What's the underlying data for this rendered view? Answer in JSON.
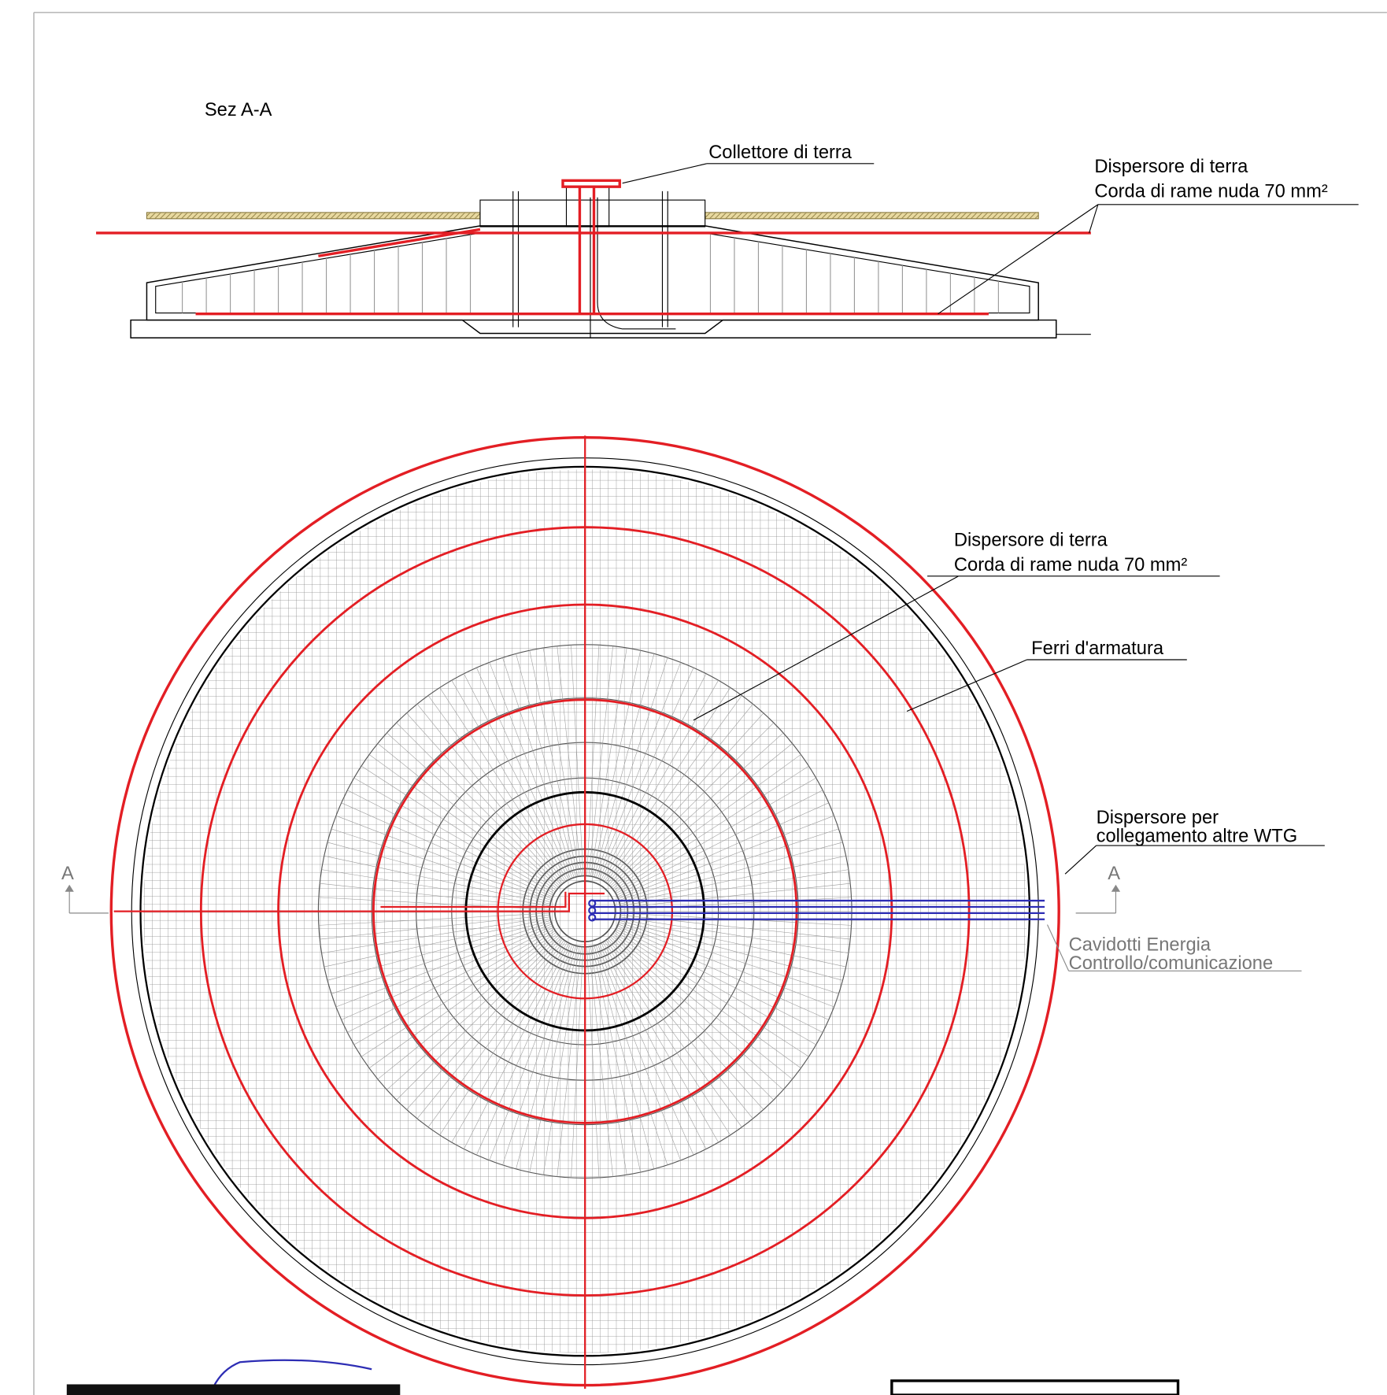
{
  "section": {
    "title": "Sez A-A",
    "labels": {
      "collettore": "Collettore di terra",
      "dispersore_line1": "Dispersore di terra",
      "dispersore_line2": "Corda di rame nuda 70 mm²"
    }
  },
  "plan": {
    "dispersore_line1": "Dispersore di terra",
    "dispersore_line2": "Corda di rame nuda 70 mm²",
    "ferri": "Ferri d'armatura",
    "collegamento_line1": "Dispersore per",
    "collegamento_line2": "collegamento altre WTG",
    "section_mark_left": "A",
    "section_mark_right": "A",
    "cavidotti_line1": "Cavidotti Energia",
    "cavidotti_line2": "Controllo/comunicazione"
  }
}
